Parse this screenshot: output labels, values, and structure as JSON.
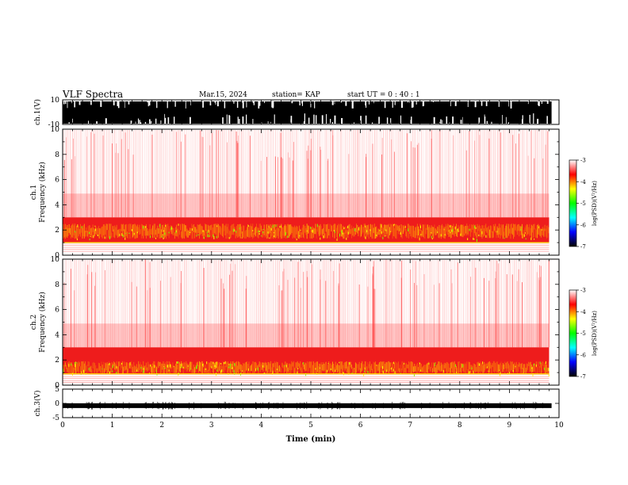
{
  "header": {
    "title": "VLF Spectra",
    "date": "Mar.15, 2024",
    "station": "station= KAP",
    "start": "start UT = 0 : 40 : 1"
  },
  "chart_data": [
    {
      "type": "line",
      "panel": "ch1-waveform",
      "ylabel": "ch.1(V)",
      "ylim": [
        -10,
        10
      ],
      "yticks": [
        "10",
        "-10"
      ],
      "xlim": [
        0,
        10
      ],
      "trace_color": "#000000",
      "description_level": "saturated waveform spanning most of the range with frequent drops"
    },
    {
      "type": "heatmap",
      "panel": "ch1-spectrogram",
      "ylabel_line1": "ch.1",
      "ylabel_line2": "Frequency (kHz)",
      "ylim": [
        0,
        10
      ],
      "yticks": [
        "10",
        "8",
        "6",
        "4",
        "2",
        "0"
      ],
      "xlim": [
        0,
        10
      ],
      "data_end_min": 9.8,
      "intense_band_khz": [
        1.0,
        3.0
      ],
      "peak_band_khz": [
        1.3,
        2.5
      ],
      "colorbar": {
        "label": "log(PSD)(V²/Hz)",
        "range": [
          -7,
          -3
        ],
        "ticks": [
          "-3",
          "-4",
          "-5",
          "-6",
          "-7"
        ],
        "colors": [
          "#000000",
          "#0000ff",
          "#00ffff",
          "#00ff00",
          "#ffff00",
          "#ff0000",
          "#ffffff"
        ]
      }
    },
    {
      "type": "heatmap",
      "panel": "ch2-spectrogram",
      "ylabel_line1": "ch.2",
      "ylabel_line2": "Frequency (kHz)",
      "ylim": [
        0,
        10
      ],
      "yticks": [
        "10",
        "8",
        "6",
        "4",
        "2",
        "0"
      ],
      "xlim": [
        0,
        10
      ],
      "data_end_min": 9.8,
      "intense_band_khz": [
        0.9,
        3.0
      ],
      "peak_band_khz": [
        0.9,
        1.9
      ],
      "colorbar": {
        "label": "log(PSD)(V²/Hz)",
        "range": [
          -7,
          -3
        ],
        "ticks": [
          "-3",
          "-4",
          "-5",
          "-6",
          "-7"
        ],
        "colors": [
          "#000000",
          "#0000ff",
          "#00ffff",
          "#00ff00",
          "#ffff00",
          "#ff0000",
          "#ffffff"
        ]
      }
    },
    {
      "type": "line",
      "panel": "ch3-waveform",
      "ylabel": "ch.3(V)",
      "ylim": [
        -5,
        5
      ],
      "yticks": [
        "5",
        "0",
        "-5"
      ],
      "xlim": [
        0,
        10
      ],
      "trace_level_v": -0.8,
      "trace_color": "#000000"
    }
  ],
  "xaxis": {
    "label": "Time (min)",
    "ticks": [
      "0",
      "1",
      "2",
      "3",
      "4",
      "5",
      "6",
      "7",
      "8",
      "9",
      "10"
    ]
  }
}
